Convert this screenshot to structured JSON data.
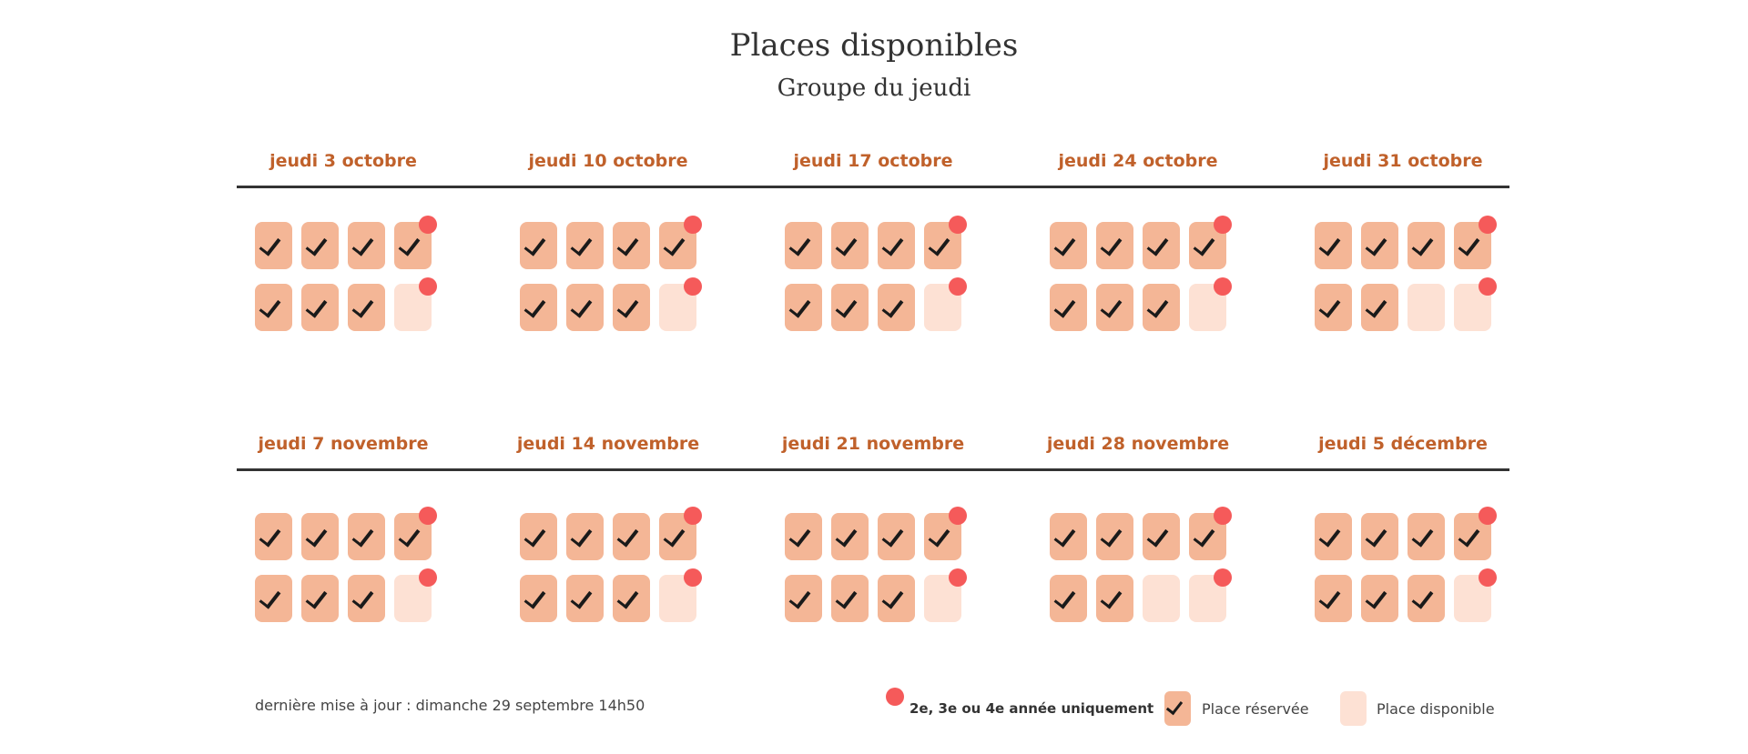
{
  "header": {
    "title": "Places disponibles",
    "subtitle": "Groupe du jeudi"
  },
  "rows": [
    {
      "sessions": [
        {
          "date": "jeudi 3 octobre",
          "seats": [
            "r",
            "r",
            "r",
            "r",
            "r",
            "r",
            "r",
            "a"
          ],
          "flagged": [
            3,
            7
          ]
        },
        {
          "date": "jeudi 10 octobre",
          "seats": [
            "r",
            "r",
            "r",
            "r",
            "r",
            "r",
            "r",
            "a"
          ],
          "flagged": [
            3,
            7
          ]
        },
        {
          "date": "jeudi 17 octobre",
          "seats": [
            "r",
            "r",
            "r",
            "r",
            "r",
            "r",
            "r",
            "a"
          ],
          "flagged": [
            3,
            7
          ]
        },
        {
          "date": "jeudi 24 octobre",
          "seats": [
            "r",
            "r",
            "r",
            "r",
            "r",
            "r",
            "r",
            "a"
          ],
          "flagged": [
            3,
            7
          ]
        },
        {
          "date": "jeudi 31 octobre",
          "seats": [
            "r",
            "r",
            "r",
            "r",
            "r",
            "r",
            "a",
            "a"
          ],
          "flagged": [
            3,
            7
          ]
        }
      ]
    },
    {
      "sessions": [
        {
          "date": "jeudi 7 novembre",
          "seats": [
            "r",
            "r",
            "r",
            "r",
            "r",
            "r",
            "r",
            "a"
          ],
          "flagged": [
            3,
            7
          ]
        },
        {
          "date": "jeudi 14 novembre",
          "seats": [
            "r",
            "r",
            "r",
            "r",
            "r",
            "r",
            "r",
            "a"
          ],
          "flagged": [
            3,
            7
          ]
        },
        {
          "date": "jeudi 21 novembre",
          "seats": [
            "r",
            "r",
            "r",
            "r",
            "r",
            "r",
            "r",
            "a"
          ],
          "flagged": [
            3,
            7
          ]
        },
        {
          "date": "jeudi 28 novembre",
          "seats": [
            "r",
            "r",
            "r",
            "r",
            "r",
            "r",
            "a",
            "a"
          ],
          "flagged": [
            3,
            7
          ]
        },
        {
          "date": "jeudi 5 décembre",
          "seats": [
            "r",
            "r",
            "r",
            "r",
            "r",
            "r",
            "r",
            "a"
          ],
          "flagged": [
            3,
            7
          ]
        }
      ]
    }
  ],
  "footer": {
    "last_update": "dernière mise à jour : dimanche 29 septembre 14h50"
  },
  "legend": {
    "flag_label": "2e, 3e ou 4e année uniquement",
    "reserved_label": "Place réservée",
    "available_label": "Place disponible"
  },
  "colors": {
    "reserved": "#f4b696",
    "available": "#fde1d4",
    "flag": "#f55a5a",
    "date_text": "#c0612b"
  }
}
